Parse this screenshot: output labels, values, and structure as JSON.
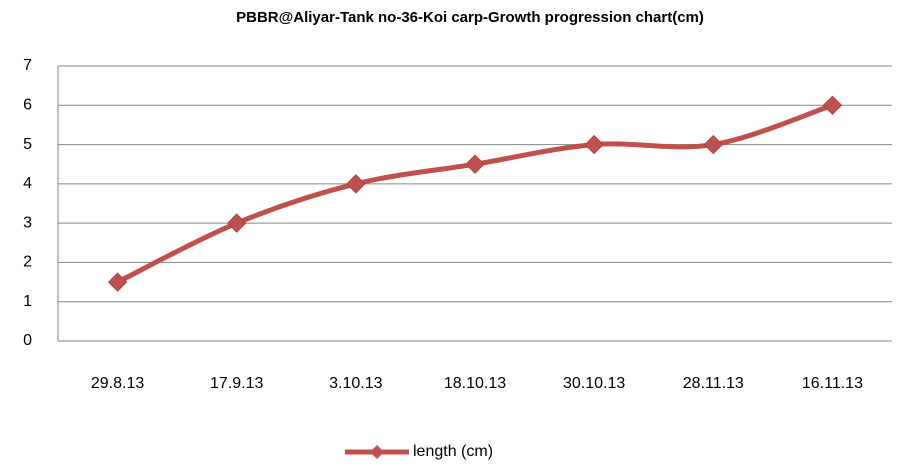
{
  "chart_data": {
    "type": "line",
    "title": "PBBR@Aliyar-Tank no-36-Koi carp-Growth progression chart(cm)",
    "categories": [
      "29.8.13",
      "17.9.13",
      "3.10.13",
      "18.10.13",
      "30.10.13",
      "28.11.13",
      "16.11.13"
    ],
    "series": [
      {
        "name": "length (cm)",
        "color": "#c0504d",
        "values": [
          1.5,
          3,
          4,
          4.5,
          5,
          5,
          6
        ]
      }
    ],
    "ylim": [
      0,
      7
    ],
    "yticks": [
      0,
      1,
      2,
      3,
      4,
      5,
      6,
      7
    ],
    "grid": true,
    "smooth": true,
    "legend": "bottom"
  }
}
